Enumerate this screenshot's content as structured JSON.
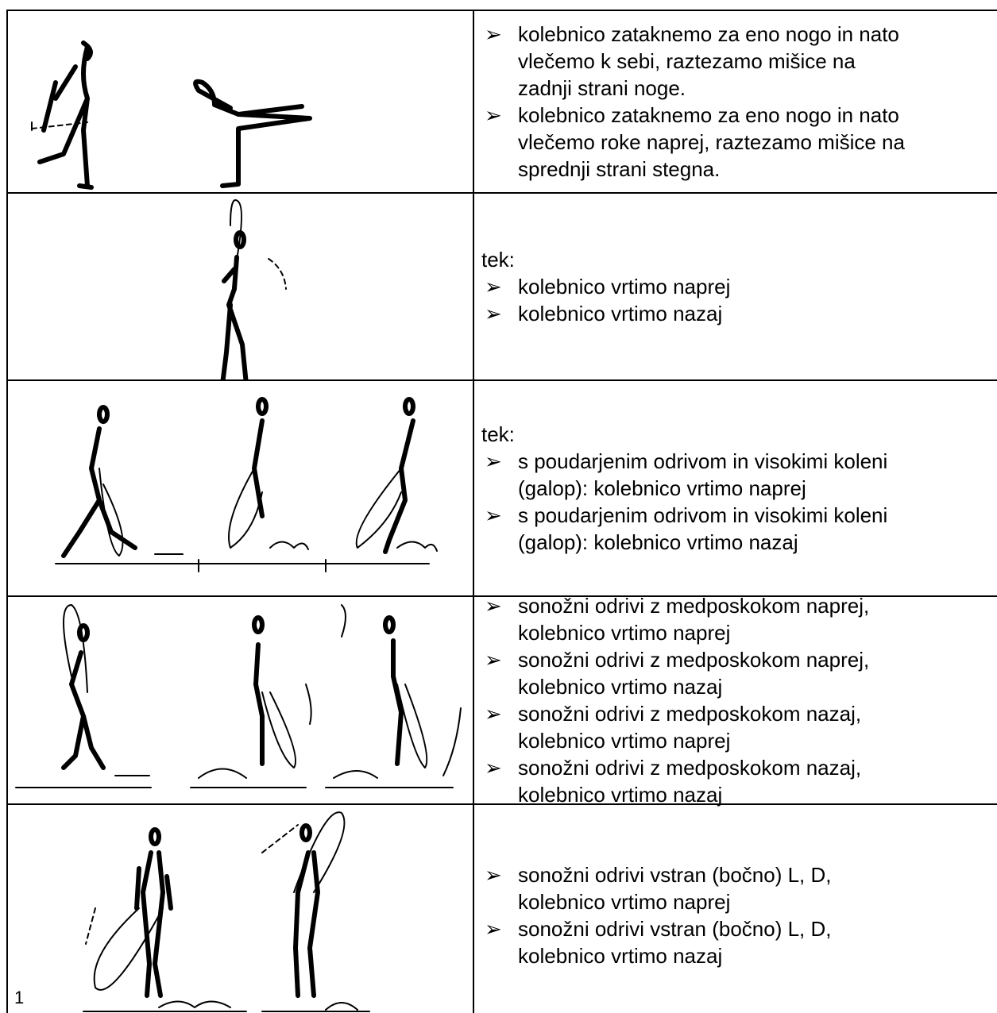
{
  "table": {
    "rows": [
      {
        "items": [
          [
            "kolebnico zataknemo za eno nogo in nato",
            "vlečemo k sebi, raztezamo mišice na",
            "zadnji strani noge."
          ],
          [
            "kolebnico zataknemo za eno nogo in nato",
            "vlečemo roke naprej, raztezamo mišice na",
            "sprednji strani stegna."
          ]
        ]
      },
      {
        "intro": "tek:",
        "items": [
          [
            "kolebnico vrtimo naprej"
          ],
          [
            "kolebnico vrtimo nazaj"
          ]
        ]
      },
      {
        "intro": "tek:",
        "items": [
          [
            "s poudarjenim odrivom in visokimi koleni",
            "(galop): kolebnico vrtimo naprej"
          ],
          [
            "s poudarjenim odrivom in visokimi koleni",
            "(galop): kolebnico vrtimo nazaj"
          ]
        ]
      },
      {
        "figure_label": "1",
        "items": [
          [
            "sonožni odrivi z medposkokom naprej,",
            "kolebnico vrtimo naprej"
          ],
          [
            "sonožni odrivi z medposkokom naprej,",
            "kolebnico vrtimo nazaj"
          ],
          [
            "sonožni odrivi z medposkokom nazaj,",
            "kolebnico vrtimo naprej"
          ],
          [
            "sonožni odrivi z medposkokom nazaj,",
            "kolebnico vrtimo nazaj"
          ]
        ]
      },
      {
        "items": [
          [
            "sonožni odrivi vstran (bočno) L, D,",
            "kolebnico vrtimo naprej"
          ],
          [
            "sonožni odrivi vstran (bočno) L, D,",
            "kolebnico vrtimo nazaj"
          ]
        ]
      }
    ]
  }
}
